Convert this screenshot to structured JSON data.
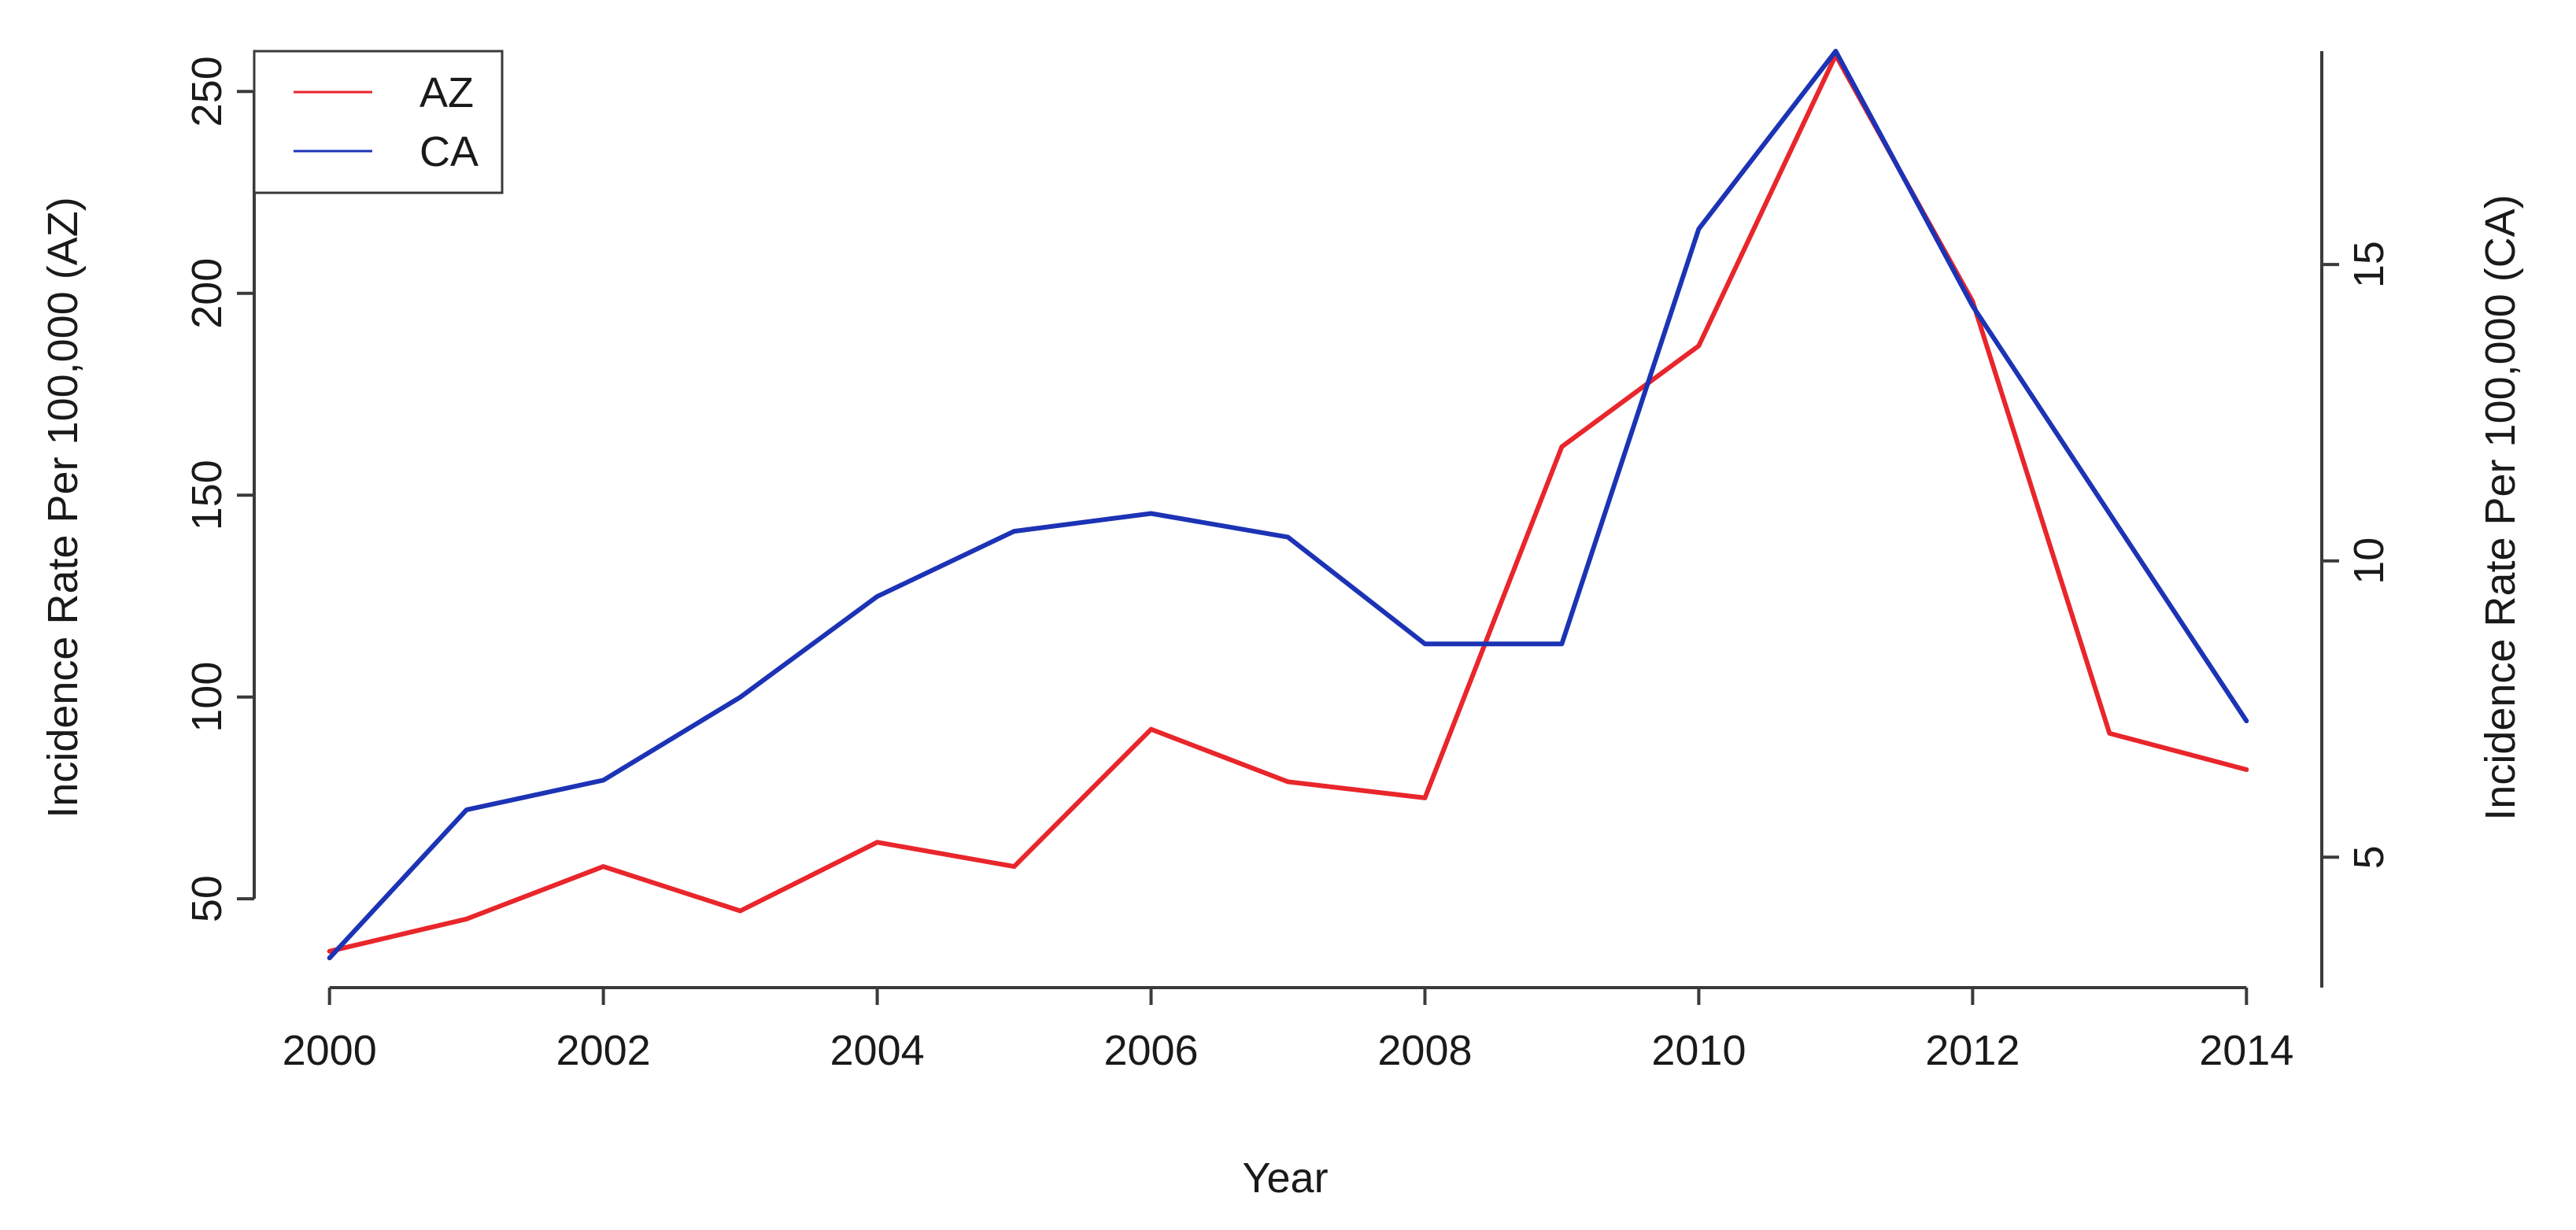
{
  "chart_data": {
    "type": "line",
    "xlabel": "Year",
    "ylabel_left": "Incidence Rate Per 100,000 (AZ)",
    "ylabel_right": "Incidence Rate Per 100,000 (CA)",
    "x": [
      2000,
      2001,
      2002,
      2003,
      2004,
      2005,
      2006,
      2007,
      2008,
      2009,
      2010,
      2011,
      2012,
      2013,
      2014
    ],
    "x_ticks": [
      2000,
      2002,
      2004,
      2006,
      2008,
      2010,
      2012,
      2014
    ],
    "xlim": [
      1999.45,
      2014.55
    ],
    "y_left_ticks": [
      50,
      100,
      150,
      200,
      250
    ],
    "y_left_lim": [
      28,
      260
    ],
    "y_right_ticks": [
      5,
      10,
      15
    ],
    "y_right_lim": [
      2.8,
      18.6
    ],
    "grid": false,
    "legend_position": "top-left",
    "series": [
      {
        "name": "AZ",
        "axis": "left",
        "color": "#e8262b",
        "values": [
          37,
          45,
          58,
          47,
          64,
          58,
          92,
          79,
          75,
          162,
          187,
          259,
          198,
          91,
          82
        ]
      },
      {
        "name": "CA",
        "axis": "right",
        "color": "#1c33b5",
        "values": [
          3.3,
          5.8,
          6.3,
          7.7,
          9.4,
          10.5,
          10.8,
          10.4,
          8.6,
          8.6,
          15.6,
          18.6,
          14.3,
          10.8,
          7.3
        ]
      }
    ]
  }
}
